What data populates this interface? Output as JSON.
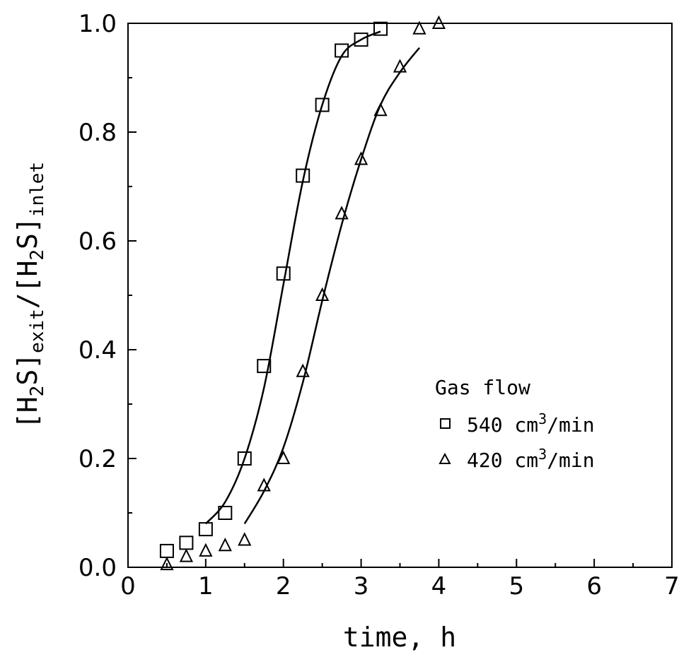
{
  "chart_data": {
    "type": "scatter",
    "xlabel": "time, h",
    "ylabel_parts": {
      "p1": "[H",
      "p1_sub": "2",
      "p2": "S]",
      "p2_sub": "exit",
      "p3": "/[H",
      "p3_sub": "2",
      "p4": "S]",
      "p4_sub": "inlet"
    },
    "xlim": [
      0,
      7
    ],
    "ylim": [
      0,
      1.0
    ],
    "x_ticks": [
      "0",
      "1",
      "2",
      "3",
      "4",
      "5",
      "6",
      "7"
    ],
    "y_ticks": [
      "0.0",
      "0.2",
      "0.4",
      "0.6",
      "0.8",
      "1.0"
    ],
    "grid": false,
    "legend": {
      "title": "Gas flow",
      "placement": "right",
      "entries": [
        {
          "marker": "square",
          "label": "540 cm",
          "sup": "3",
          "unit": "/min"
        },
        {
          "marker": "triangle",
          "label": "420 cm",
          "sup": "3",
          "unit": "/min"
        }
      ]
    },
    "series": [
      {
        "marker": "square",
        "x": [
          0.5,
          0.75,
          1.0,
          1.25,
          1.5,
          1.75,
          2.0,
          2.25,
          2.5,
          2.75,
          3.0,
          3.25
        ],
        "y": [
          0.03,
          0.045,
          0.07,
          0.1,
          0.2,
          0.37,
          0.54,
          0.72,
          0.85,
          0.95,
          0.97,
          0.99
        ],
        "fit": {
          "x": [
            1.0,
            1.25,
            1.5,
            1.75,
            2.0,
            2.25,
            2.5,
            2.75,
            3.0,
            3.25
          ],
          "y": [
            0.08,
            0.12,
            0.2,
            0.33,
            0.52,
            0.71,
            0.85,
            0.94,
            0.97,
            0.985
          ]
        }
      },
      {
        "marker": "triangle",
        "x": [
          0.5,
          0.75,
          1.0,
          1.25,
          1.5,
          1.75,
          2.0,
          2.25,
          2.5,
          2.75,
          3.0,
          3.25,
          3.5,
          3.75,
          4.0
        ],
        "y": [
          0.005,
          0.02,
          0.03,
          0.04,
          0.05,
          0.15,
          0.2,
          0.36,
          0.5,
          0.65,
          0.75,
          0.84,
          0.92,
          0.99,
          1.0
        ],
        "fit": {
          "x": [
            1.5,
            1.75,
            2.0,
            2.25,
            2.5,
            2.75,
            3.0,
            3.25,
            3.5,
            3.75
          ],
          "y": [
            0.08,
            0.14,
            0.22,
            0.34,
            0.49,
            0.63,
            0.75,
            0.85,
            0.91,
            0.955
          ]
        }
      }
    ]
  }
}
